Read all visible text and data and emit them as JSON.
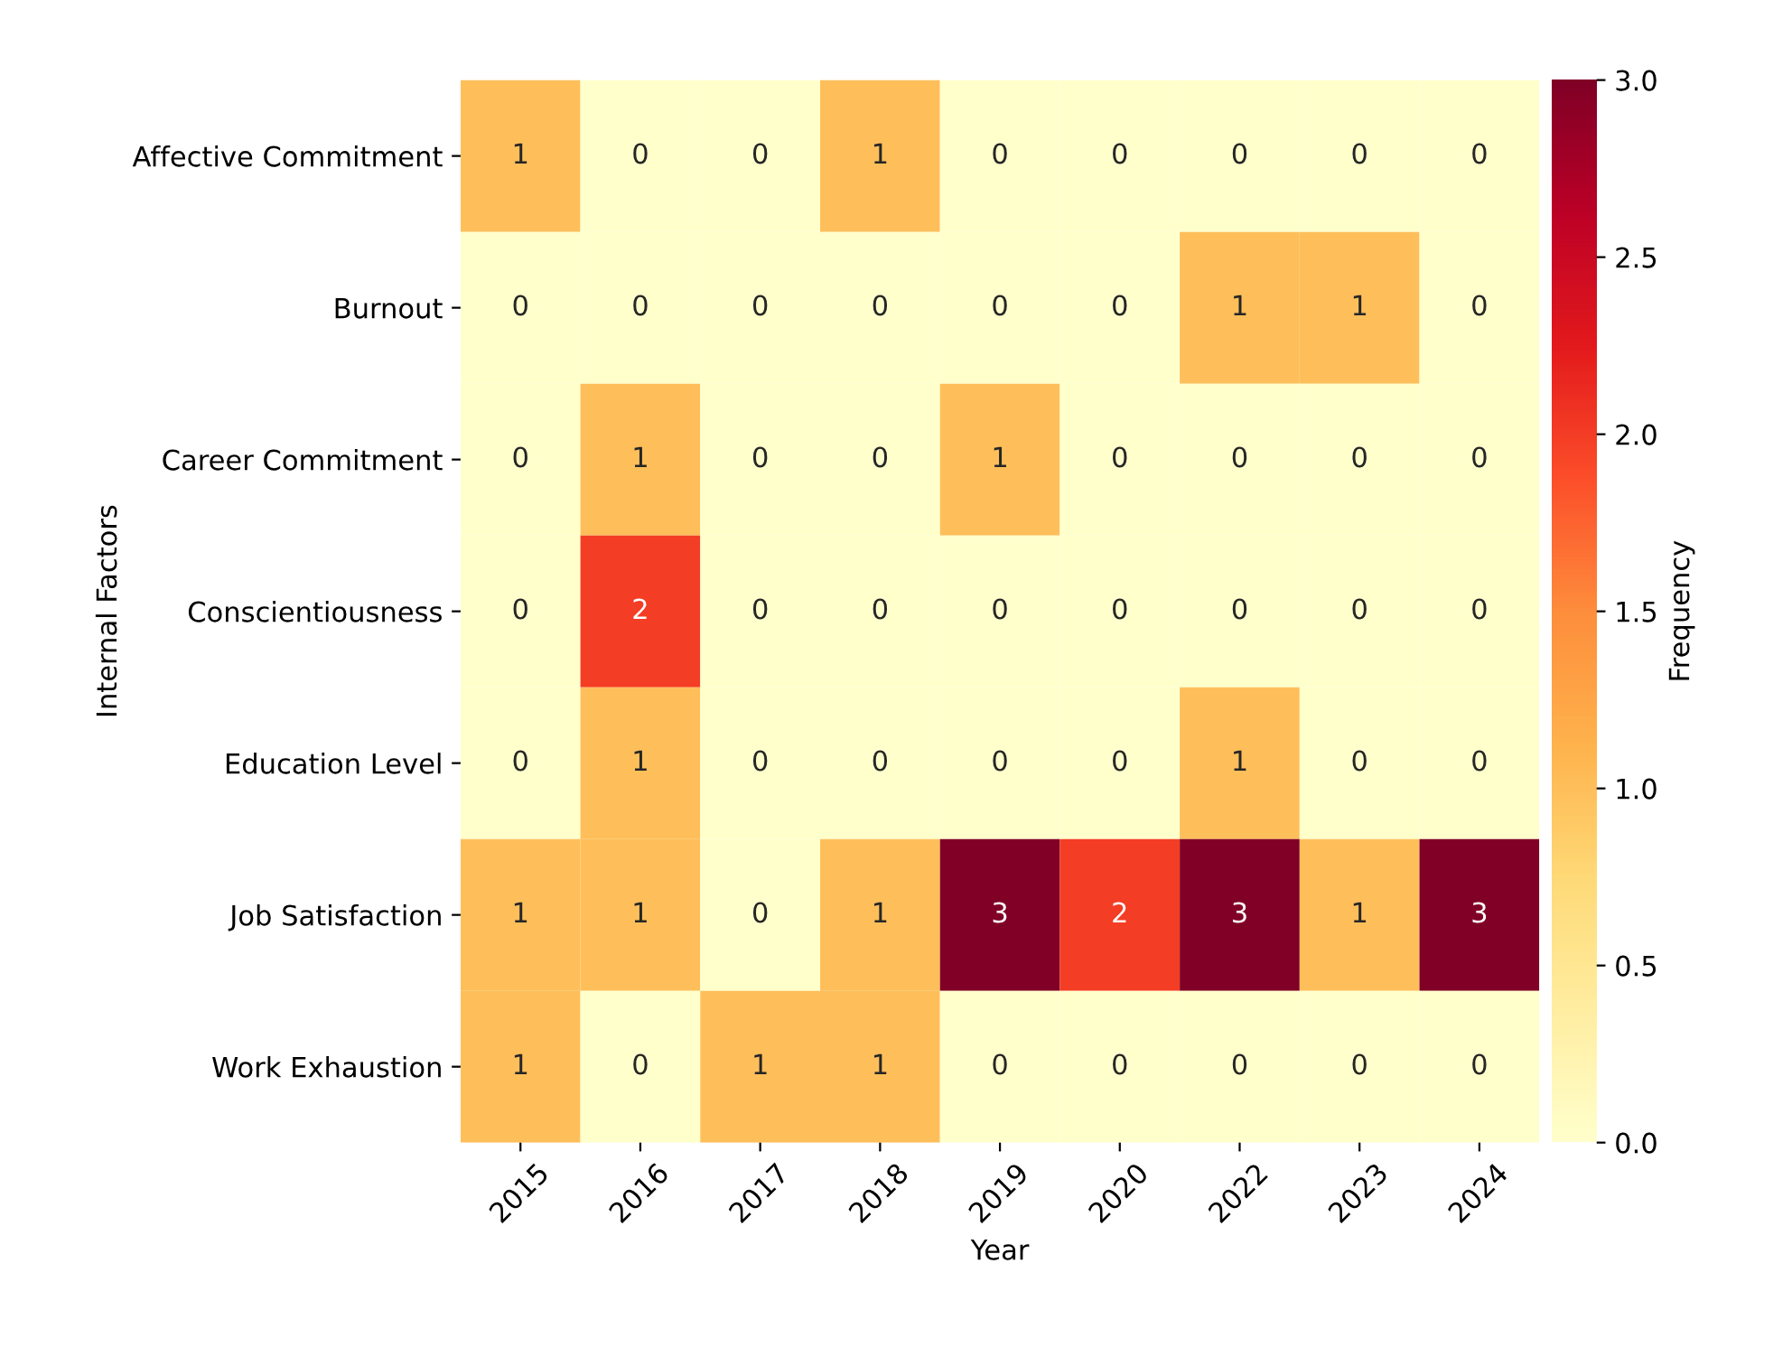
{
  "chart_data": {
    "type": "heatmap",
    "xlabel": "Year",
    "ylabel": "Internal Factors",
    "clabel": "Frequency",
    "categories": [
      "2015",
      "2016",
      "2017",
      "2018",
      "2019",
      "2020",
      "2022",
      "2023",
      "2024"
    ],
    "y_categories": [
      "Affective Commitment",
      "Burnout",
      "Career Commitment",
      "Conscientiousness",
      "Education Level",
      "Job Satisfaction",
      "Work Exhaustion"
    ],
    "cells": [
      [
        1,
        0,
        0,
        1,
        0,
        0,
        0,
        0,
        0
      ],
      [
        0,
        0,
        0,
        0,
        0,
        0,
        1,
        1,
        0
      ],
      [
        0,
        1,
        0,
        0,
        1,
        0,
        0,
        0,
        0
      ],
      [
        0,
        2,
        0,
        0,
        0,
        0,
        0,
        0,
        0
      ],
      [
        0,
        1,
        0,
        0,
        0,
        0,
        1,
        0,
        0
      ],
      [
        1,
        1,
        0,
        1,
        3,
        2,
        3,
        1,
        3
      ],
      [
        1,
        0,
        1,
        1,
        0,
        0,
        0,
        0,
        0
      ]
    ],
    "clim": [
      0.0,
      3.0
    ],
    "cticks": [
      {
        "value": 0.0,
        "label": "0.0"
      },
      {
        "value": 0.5,
        "label": "0.5"
      },
      {
        "value": 1.0,
        "label": "1.0"
      },
      {
        "value": 1.5,
        "label": "1.5"
      },
      {
        "value": 2.0,
        "label": "2.0"
      },
      {
        "value": 2.5,
        "label": "2.5"
      },
      {
        "value": 3.0,
        "label": "3.0"
      }
    ],
    "data_labels": true
  }
}
